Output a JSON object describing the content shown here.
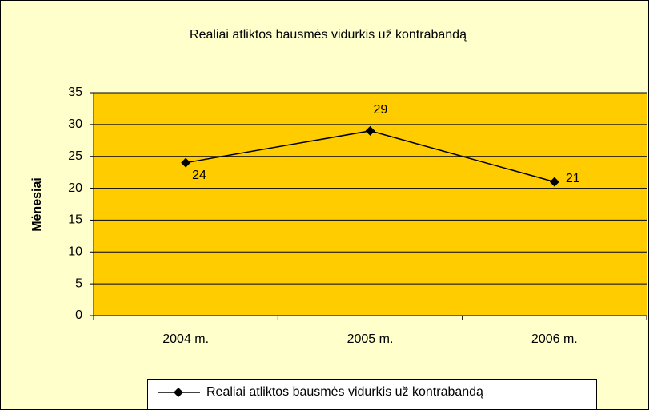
{
  "chart_data": {
    "type": "line",
    "title": "Realiai atliktos bausmės vidurkis už kontrabandą",
    "y_label": "Mėnesiai",
    "categories": [
      "2004 m.",
      "2005 m.",
      "2006 m."
    ],
    "series": [
      {
        "name": "Realiai atliktos bausmės vidurkis už kontrabandą",
        "color": "#000000",
        "values": [
          24,
          29,
          21
        ]
      }
    ],
    "ylim": [
      0,
      35
    ],
    "yticks": [
      0,
      5,
      10,
      15,
      20,
      25,
      30,
      35
    ],
    "grid": true,
    "legend": "bottom"
  }
}
